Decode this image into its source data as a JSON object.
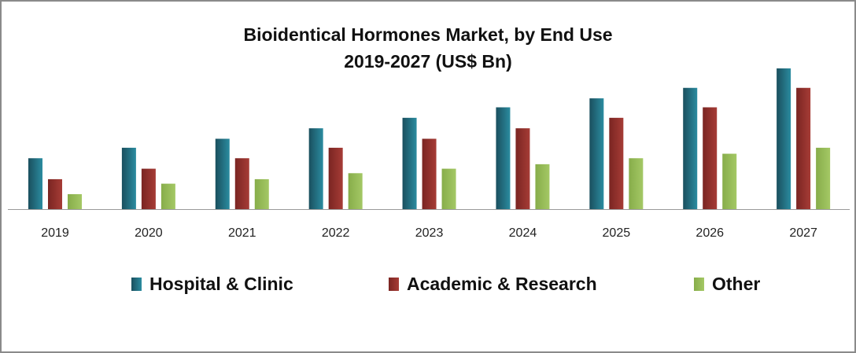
{
  "chart_data": {
    "type": "bar",
    "title_line1": "Bioidentical Hormones Market, by End Use",
    "title_line2": "2019-2027 (US$ Bn)",
    "categories": [
      "2019",
      "2020",
      "2021",
      "2022",
      "2023",
      "2024",
      "2025",
      "2026",
      "2027"
    ],
    "series": [
      {
        "name": "Hospital & Clinic",
        "color": "#2b8ca0",
        "values": [
          3.4,
          4.1,
          4.7,
          5.4,
          6.1,
          6.8,
          7.4,
          8.1,
          9.4
        ]
      },
      {
        "name": "Academic & Research",
        "color": "#a63c36",
        "values": [
          2.0,
          2.7,
          3.4,
          4.1,
          4.7,
          5.4,
          6.1,
          6.8,
          8.1
        ]
      },
      {
        "name": "Other",
        "color": "#a4c865",
        "values": [
          1.0,
          1.7,
          2.0,
          2.4,
          2.7,
          3.0,
          3.4,
          3.7,
          4.1
        ]
      }
    ],
    "xlabel": "",
    "ylabel": "",
    "ylim": [
      0,
      10
    ],
    "y_axis_shown": false,
    "grid": false,
    "legend_position": "bottom"
  }
}
